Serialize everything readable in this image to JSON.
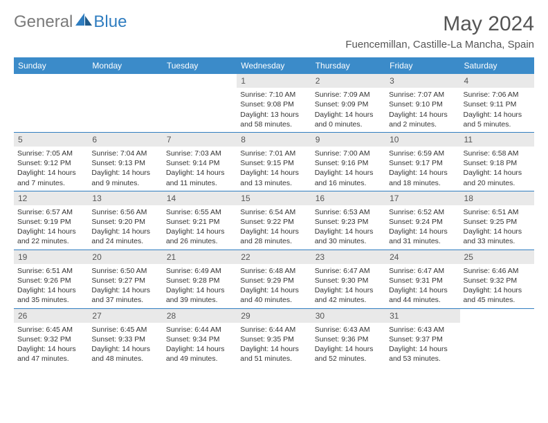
{
  "brand": {
    "word1": "General",
    "word2": "Blue"
  },
  "header": {
    "title": "May 2024",
    "location": "Fuencemillan, Castille-La Mancha, Spain"
  },
  "colors": {
    "header_bg": "#3b8bc9",
    "rule": "#2f7dc0",
    "daynum_bg": "#e9e9e9",
    "text": "#333333",
    "title_text": "#555555"
  },
  "weekdays": [
    "Sunday",
    "Monday",
    "Tuesday",
    "Wednesday",
    "Thursday",
    "Friday",
    "Saturday"
  ],
  "weeks": [
    [
      null,
      null,
      null,
      {
        "n": "1",
        "sr": "Sunrise: 7:10 AM",
        "ss": "Sunset: 9:08 PM",
        "dl": "Daylight: 13 hours and 58 minutes."
      },
      {
        "n": "2",
        "sr": "Sunrise: 7:09 AM",
        "ss": "Sunset: 9:09 PM",
        "dl": "Daylight: 14 hours and 0 minutes."
      },
      {
        "n": "3",
        "sr": "Sunrise: 7:07 AM",
        "ss": "Sunset: 9:10 PM",
        "dl": "Daylight: 14 hours and 2 minutes."
      },
      {
        "n": "4",
        "sr": "Sunrise: 7:06 AM",
        "ss": "Sunset: 9:11 PM",
        "dl": "Daylight: 14 hours and 5 minutes."
      }
    ],
    [
      {
        "n": "5",
        "sr": "Sunrise: 7:05 AM",
        "ss": "Sunset: 9:12 PM",
        "dl": "Daylight: 14 hours and 7 minutes."
      },
      {
        "n": "6",
        "sr": "Sunrise: 7:04 AM",
        "ss": "Sunset: 9:13 PM",
        "dl": "Daylight: 14 hours and 9 minutes."
      },
      {
        "n": "7",
        "sr": "Sunrise: 7:03 AM",
        "ss": "Sunset: 9:14 PM",
        "dl": "Daylight: 14 hours and 11 minutes."
      },
      {
        "n": "8",
        "sr": "Sunrise: 7:01 AM",
        "ss": "Sunset: 9:15 PM",
        "dl": "Daylight: 14 hours and 13 minutes."
      },
      {
        "n": "9",
        "sr": "Sunrise: 7:00 AM",
        "ss": "Sunset: 9:16 PM",
        "dl": "Daylight: 14 hours and 16 minutes."
      },
      {
        "n": "10",
        "sr": "Sunrise: 6:59 AM",
        "ss": "Sunset: 9:17 PM",
        "dl": "Daylight: 14 hours and 18 minutes."
      },
      {
        "n": "11",
        "sr": "Sunrise: 6:58 AM",
        "ss": "Sunset: 9:18 PM",
        "dl": "Daylight: 14 hours and 20 minutes."
      }
    ],
    [
      {
        "n": "12",
        "sr": "Sunrise: 6:57 AM",
        "ss": "Sunset: 9:19 PM",
        "dl": "Daylight: 14 hours and 22 minutes."
      },
      {
        "n": "13",
        "sr": "Sunrise: 6:56 AM",
        "ss": "Sunset: 9:20 PM",
        "dl": "Daylight: 14 hours and 24 minutes."
      },
      {
        "n": "14",
        "sr": "Sunrise: 6:55 AM",
        "ss": "Sunset: 9:21 PM",
        "dl": "Daylight: 14 hours and 26 minutes."
      },
      {
        "n": "15",
        "sr": "Sunrise: 6:54 AM",
        "ss": "Sunset: 9:22 PM",
        "dl": "Daylight: 14 hours and 28 minutes."
      },
      {
        "n": "16",
        "sr": "Sunrise: 6:53 AM",
        "ss": "Sunset: 9:23 PM",
        "dl": "Daylight: 14 hours and 30 minutes."
      },
      {
        "n": "17",
        "sr": "Sunrise: 6:52 AM",
        "ss": "Sunset: 9:24 PM",
        "dl": "Daylight: 14 hours and 31 minutes."
      },
      {
        "n": "18",
        "sr": "Sunrise: 6:51 AM",
        "ss": "Sunset: 9:25 PM",
        "dl": "Daylight: 14 hours and 33 minutes."
      }
    ],
    [
      {
        "n": "19",
        "sr": "Sunrise: 6:51 AM",
        "ss": "Sunset: 9:26 PM",
        "dl": "Daylight: 14 hours and 35 minutes."
      },
      {
        "n": "20",
        "sr": "Sunrise: 6:50 AM",
        "ss": "Sunset: 9:27 PM",
        "dl": "Daylight: 14 hours and 37 minutes."
      },
      {
        "n": "21",
        "sr": "Sunrise: 6:49 AM",
        "ss": "Sunset: 9:28 PM",
        "dl": "Daylight: 14 hours and 39 minutes."
      },
      {
        "n": "22",
        "sr": "Sunrise: 6:48 AM",
        "ss": "Sunset: 9:29 PM",
        "dl": "Daylight: 14 hours and 40 minutes."
      },
      {
        "n": "23",
        "sr": "Sunrise: 6:47 AM",
        "ss": "Sunset: 9:30 PM",
        "dl": "Daylight: 14 hours and 42 minutes."
      },
      {
        "n": "24",
        "sr": "Sunrise: 6:47 AM",
        "ss": "Sunset: 9:31 PM",
        "dl": "Daylight: 14 hours and 44 minutes."
      },
      {
        "n": "25",
        "sr": "Sunrise: 6:46 AM",
        "ss": "Sunset: 9:32 PM",
        "dl": "Daylight: 14 hours and 45 minutes."
      }
    ],
    [
      {
        "n": "26",
        "sr": "Sunrise: 6:45 AM",
        "ss": "Sunset: 9:32 PM",
        "dl": "Daylight: 14 hours and 47 minutes."
      },
      {
        "n": "27",
        "sr": "Sunrise: 6:45 AM",
        "ss": "Sunset: 9:33 PM",
        "dl": "Daylight: 14 hours and 48 minutes."
      },
      {
        "n": "28",
        "sr": "Sunrise: 6:44 AM",
        "ss": "Sunset: 9:34 PM",
        "dl": "Daylight: 14 hours and 49 minutes."
      },
      {
        "n": "29",
        "sr": "Sunrise: 6:44 AM",
        "ss": "Sunset: 9:35 PM",
        "dl": "Daylight: 14 hours and 51 minutes."
      },
      {
        "n": "30",
        "sr": "Sunrise: 6:43 AM",
        "ss": "Sunset: 9:36 PM",
        "dl": "Daylight: 14 hours and 52 minutes."
      },
      {
        "n": "31",
        "sr": "Sunrise: 6:43 AM",
        "ss": "Sunset: 9:37 PM",
        "dl": "Daylight: 14 hours and 53 minutes."
      },
      null
    ]
  ]
}
